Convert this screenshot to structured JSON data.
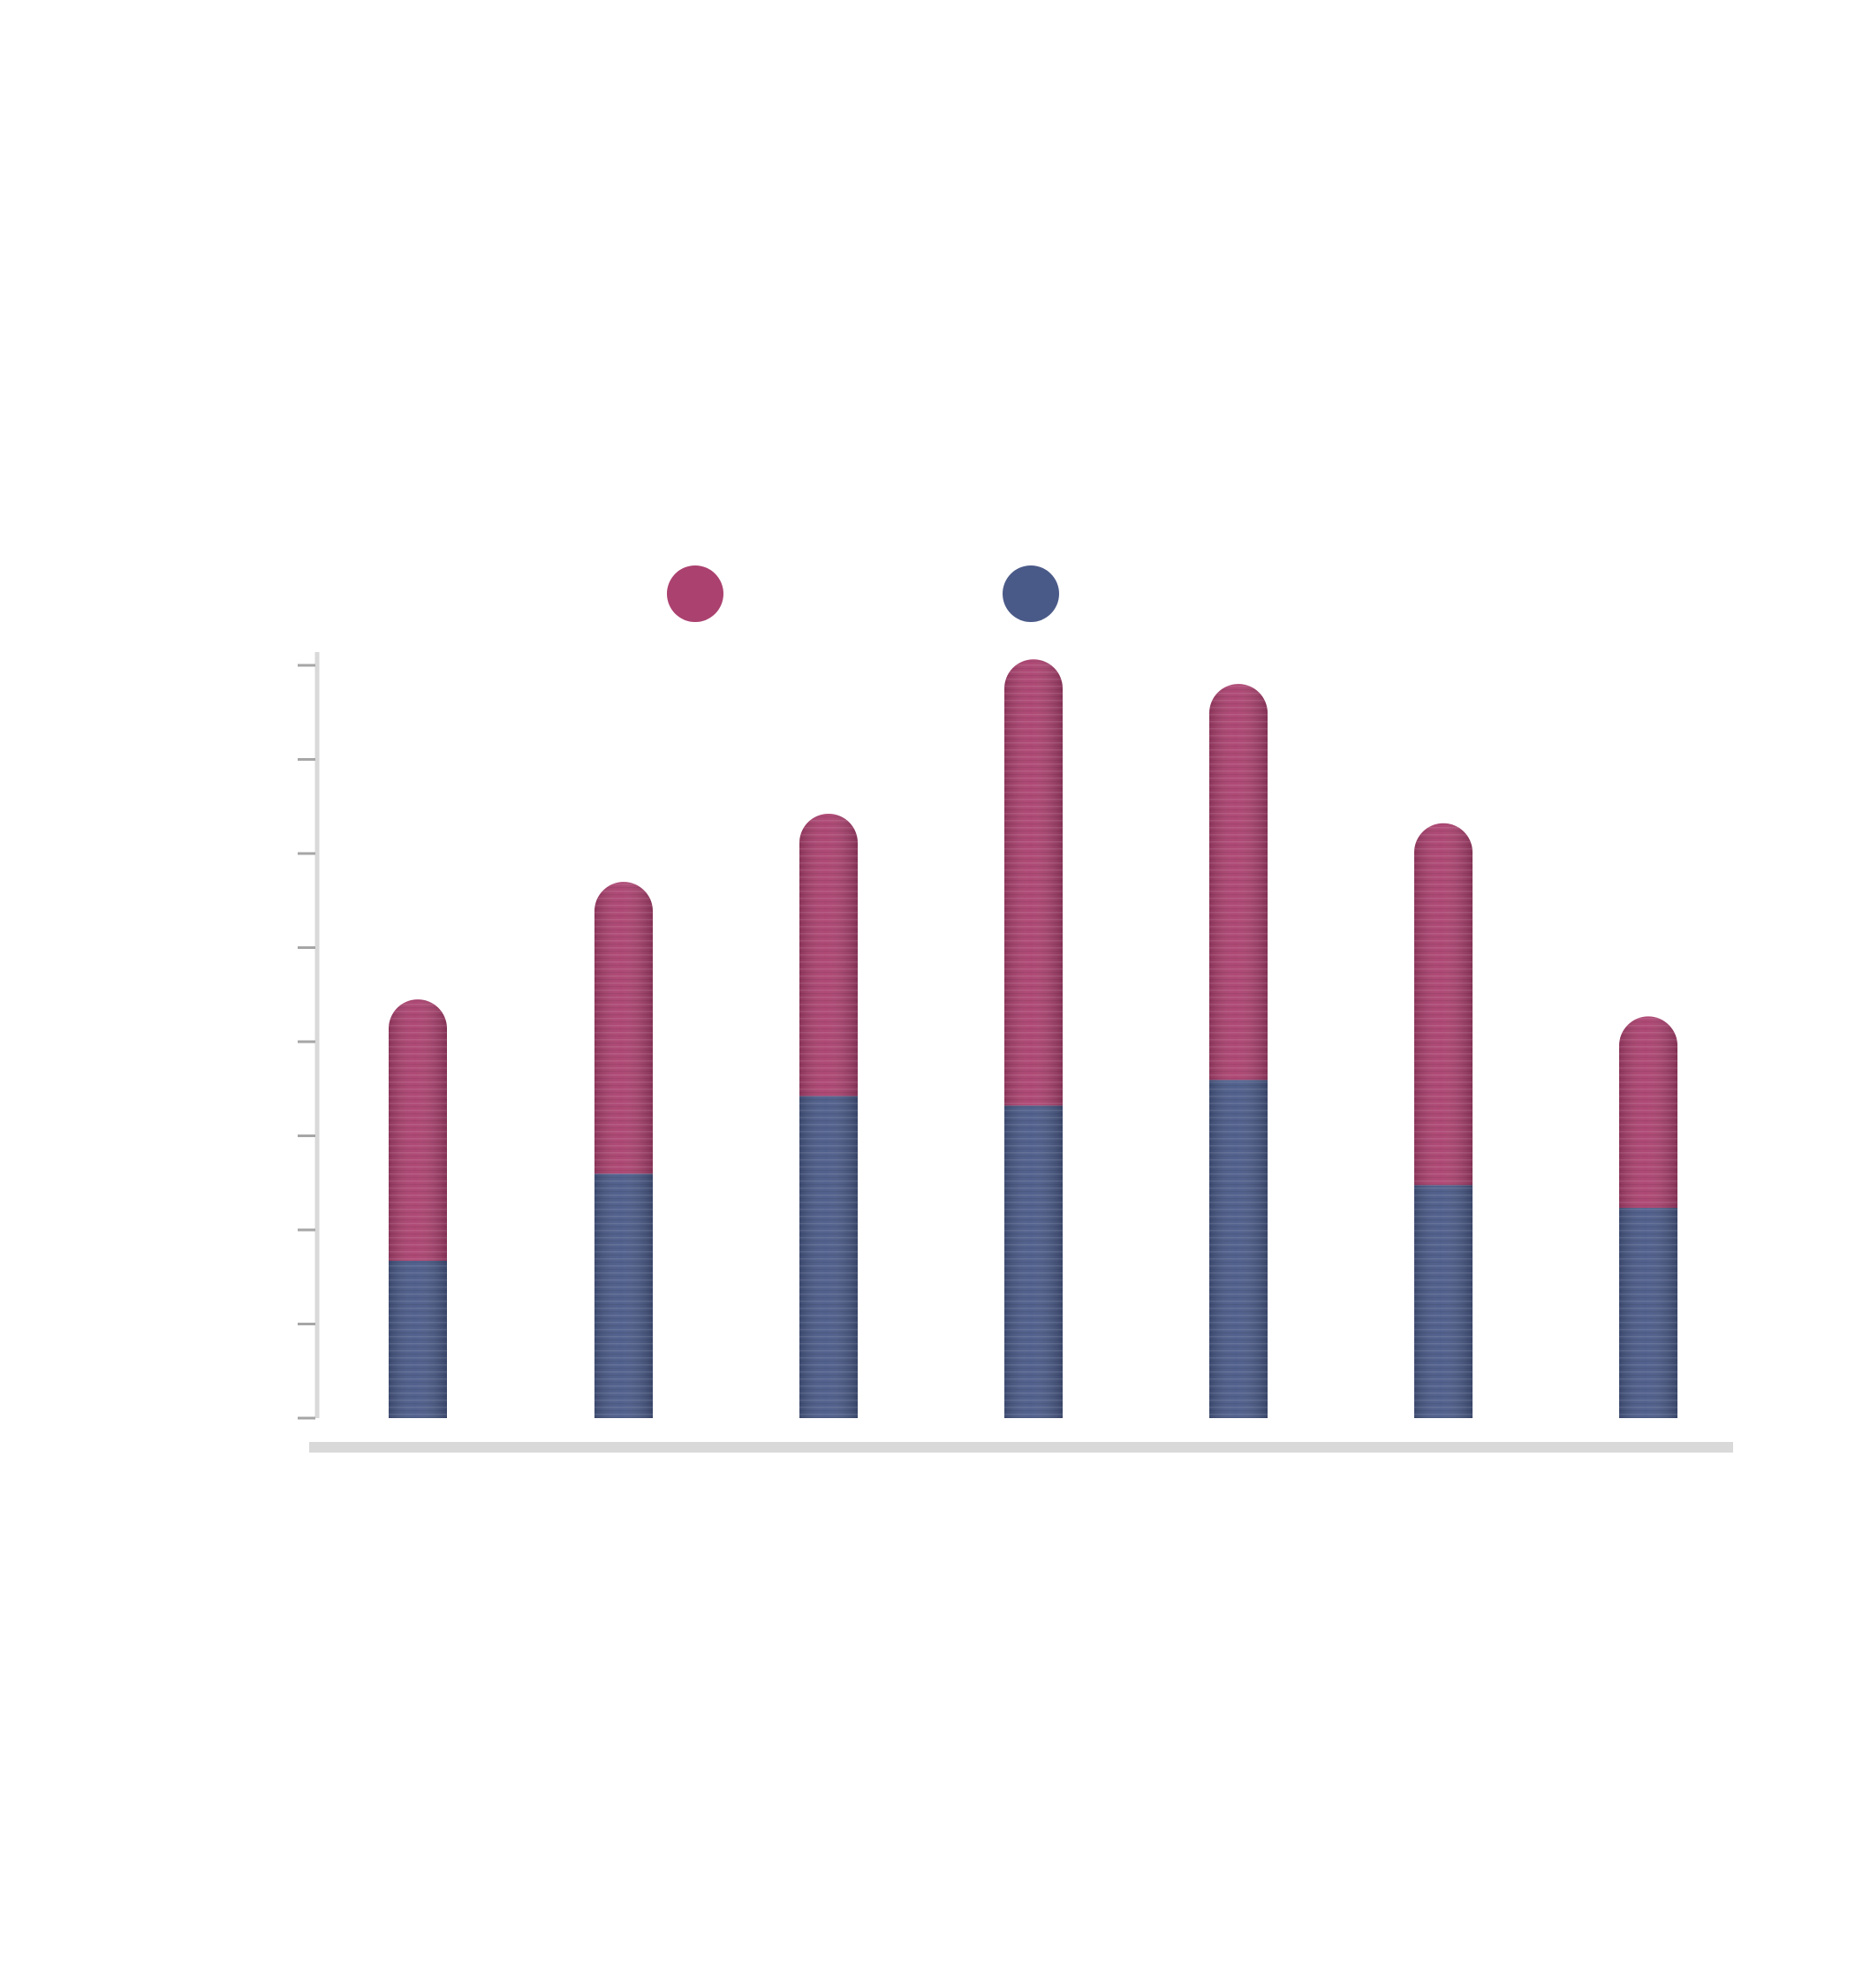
{
  "chart_data": {
    "type": "bar",
    "stacked": true,
    "bar_shape": "rounded-top-pill",
    "categories": [
      "",
      "",
      "",
      "",
      "",
      "",
      ""
    ],
    "series": [
      {
        "values": [
          1.66,
          2.58,
          3.4,
          3.3,
          3.57,
          2.46,
          2.22
        ],
        "color": "#4a5a88"
      },
      {
        "values": [
          2.76,
          3.08,
          2.98,
          4.71,
          4.18,
          3.82,
          2.02
        ],
        "color": "#ab416f"
      }
    ],
    "ylim": [
      0,
      7.9
    ],
    "y_ticks_count": 9,
    "tick_labels_visible": false,
    "grid": false,
    "legend": {
      "position": "top",
      "markers": [
        "#ab416f",
        "#4a5a88"
      ]
    },
    "axis_color": "#d9d9d9",
    "tick_color": "#a6a6a6"
  }
}
